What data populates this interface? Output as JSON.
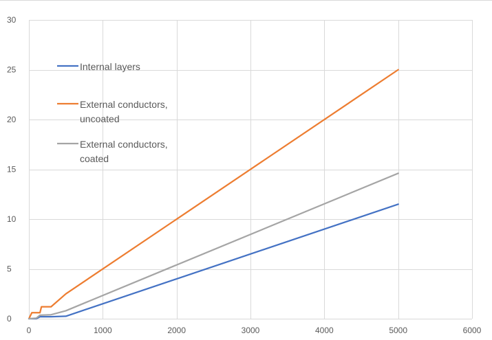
{
  "chart_data": {
    "type": "line",
    "title": "",
    "xlabel": "",
    "ylabel": "",
    "xlim": [
      0,
      6000
    ],
    "ylim": [
      0,
      30
    ],
    "x_ticks": [
      0,
      1000,
      2000,
      3000,
      4000,
      5000,
      6000
    ],
    "y_ticks": [
      0,
      5,
      10,
      15,
      20,
      25,
      30
    ],
    "grid": "major gridlines on both axes",
    "legend_position": "top-left inside plot",
    "series": [
      {
        "name": "Internal layers",
        "color": "#4472c4",
        "points": [
          [
            0,
            0
          ],
          [
            100,
            0
          ],
          [
            150,
            0.2
          ],
          [
            300,
            0.2
          ],
          [
            500,
            0.25
          ],
          [
            5000,
            11.5
          ]
        ]
      },
      {
        "name": "External conductors, uncoated",
        "color": "#ed7d31",
        "points": [
          [
            0,
            0
          ],
          [
            40,
            0.6
          ],
          [
            150,
            0.6
          ],
          [
            170,
            1.2
          ],
          [
            300,
            1.2
          ],
          [
            500,
            2.5
          ],
          [
            5000,
            25
          ]
        ]
      },
      {
        "name": "External conductors, coated",
        "color": "#a5a5a5",
        "points": [
          [
            0,
            0
          ],
          [
            100,
            0.05
          ],
          [
            150,
            0.35
          ],
          [
            300,
            0.4
          ],
          [
            500,
            0.8
          ],
          [
            5000,
            14.6
          ]
        ]
      }
    ],
    "legend_entries": [
      {
        "lines": [
          "Internal layers"
        ]
      },
      {
        "lines": [
          "External conductors,",
          "uncoated"
        ]
      },
      {
        "lines": [
          "External conductors,",
          "coated"
        ]
      }
    ]
  }
}
